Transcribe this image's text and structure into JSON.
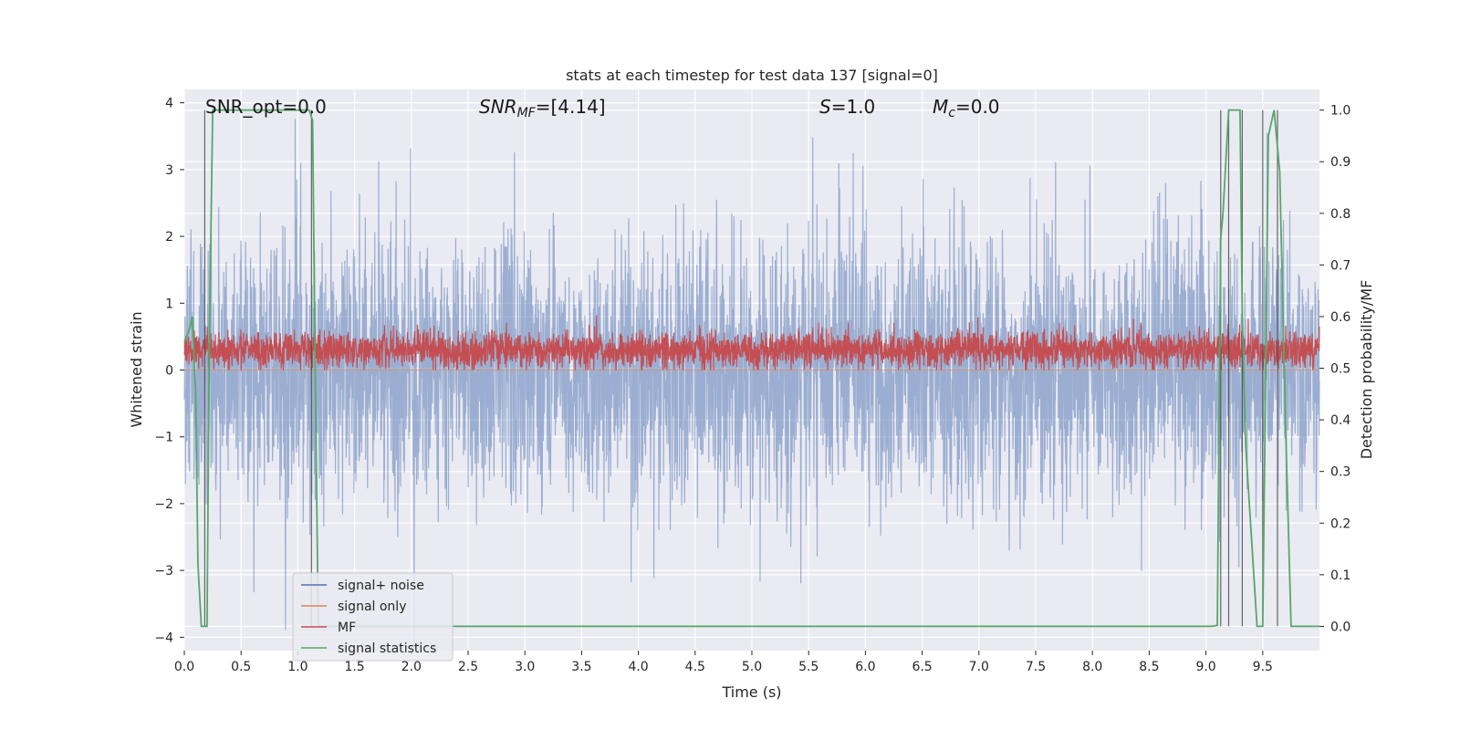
{
  "chart_data": {
    "type": "line",
    "title": "stats at each timestep for test data 137 [signal=0]",
    "xlabel": "Time (s)",
    "ylabel": "Whitened strain",
    "ylabel_right": "Detection probability/MF",
    "xlim": [
      0.0,
      10.0
    ],
    "ylim": [
      -4.2,
      4.2
    ],
    "ylim_right": [
      -0.047,
      1.04
    ],
    "x_ticks": [
      "0.0",
      "0.5",
      "1.0",
      "1.5",
      "2.0",
      "2.5",
      "3.0",
      "3.5",
      "4.0",
      "4.5",
      "5.0",
      "5.5",
      "6.0",
      "6.5",
      "7.0",
      "7.5",
      "8.0",
      "8.5",
      "9.0",
      "9.5"
    ],
    "y_ticks": [
      "4",
      "3",
      "2",
      "1",
      "0",
      "−1",
      "−2",
      "−3",
      "−4"
    ],
    "y_ticks_right": [
      "1.0",
      "0.9",
      "0.8",
      "0.7",
      "0.6",
      "0.5",
      "0.4",
      "0.3",
      "0.2",
      "0.1",
      "0.0"
    ],
    "grid": true,
    "legend_position": "lower-left",
    "annotations": {
      "snr_opt": "SNR_opt=0.0",
      "snr_mf_name": "SNR",
      "snr_mf_sub": "MF",
      "snr_mf_value": "=[4.14]",
      "s_name": "S",
      "s_value": "=1.0",
      "mc_name": "M",
      "mc_sub": "c",
      "mc_value": "=0.0"
    },
    "series": [
      {
        "name": "signal+ noise",
        "color": "#4c72b0",
        "kind": "noise",
        "amplitude_std": 1.0
      },
      {
        "name": "signal only",
        "color": "#dd8452",
        "kind": "flat",
        "y": 0.0
      },
      {
        "name": "MF",
        "color": "#c44e52",
        "kind": "mf",
        "mean": 0.3,
        "range": [
          0.0,
          0.95
        ]
      },
      {
        "name": "signal statistics",
        "color": "#55a868",
        "kind": "probability",
        "x": [
          0.0,
          0.05,
          0.07,
          0.1,
          0.12,
          0.15,
          0.2,
          0.22,
          0.25,
          1.0,
          1.1,
          1.13,
          1.15,
          1.18,
          1.25,
          9.05,
          9.1,
          9.13,
          9.15,
          9.2,
          9.3,
          9.32,
          9.35,
          9.45,
          9.5,
          9.55,
          9.6,
          9.65,
          9.7,
          9.75,
          9.8,
          9.82,
          10.0
        ],
        "values": [
          0.55,
          0.58,
          0.6,
          0.45,
          0.12,
          0.0,
          0.0,
          0.55,
          1.0,
          1.0,
          1.0,
          0.98,
          0.55,
          0.0,
          0.0,
          0.0,
          0.002,
          0.75,
          0.8,
          1.0,
          1.0,
          0.6,
          0.35,
          0.0,
          0.0,
          0.95,
          1.0,
          0.88,
          0.4,
          0.0,
          0.0,
          0.0,
          0.0
        ]
      }
    ],
    "vertical_markers_x": [
      0.18,
      1.12,
      9.13,
      9.2,
      9.32,
      9.5,
      9.63
    ]
  }
}
